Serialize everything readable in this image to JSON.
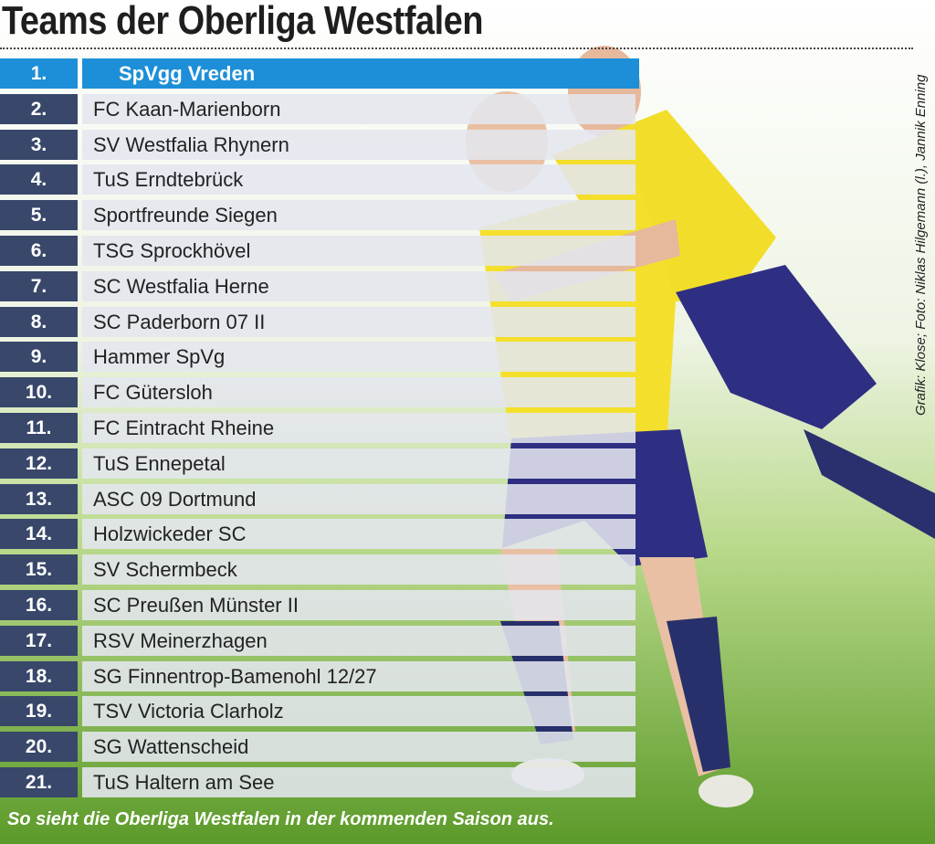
{
  "header": {
    "title": "Teams der Oberliga Westfalen"
  },
  "table": {
    "rows": [
      [
        "1.",
        "SpVgg Vreden"
      ],
      [
        "2.",
        "FC Kaan-Marienborn"
      ],
      [
        "3.",
        "SV Westfalia Rhynern"
      ],
      [
        "4.",
        "TuS Erndtebrück"
      ],
      [
        "5.",
        "Sportfreunde Siegen"
      ],
      [
        "6.",
        "TSG Sprockhövel"
      ],
      [
        "7.",
        "SC Westfalia Herne"
      ],
      [
        "8.",
        "SC Paderborn 07 II"
      ],
      [
        "9.",
        "Hammer SpVg"
      ],
      [
        "10.",
        "FC Gütersloh"
      ],
      [
        "11.",
        "FC Eintracht Rheine"
      ],
      [
        "12.",
        "TuS Ennepetal"
      ],
      [
        "13.",
        "ASC 09 Dortmund"
      ],
      [
        "14.",
        "Holzwickeder SC"
      ],
      [
        "15.",
        "SV Schermbeck"
      ],
      [
        "16.",
        "SC Preußen Münster II"
      ],
      [
        "17.",
        "RSV Meinerzhagen"
      ],
      [
        "18.",
        "SG Finnentrop-Bamenohl 12/27"
      ],
      [
        "19.",
        "TSV Victoria Clarholz"
      ],
      [
        "20.",
        "SG Wattenscheid"
      ],
      [
        "21.",
        "TuS Haltern am See"
      ]
    ]
  },
  "caption": "So sieht die Oberliga Westfalen in der kommenden Saison aus.",
  "credit": "Grafik: Klose; Foto: Niklas Hilgemann (l.), Jannik Enning"
}
